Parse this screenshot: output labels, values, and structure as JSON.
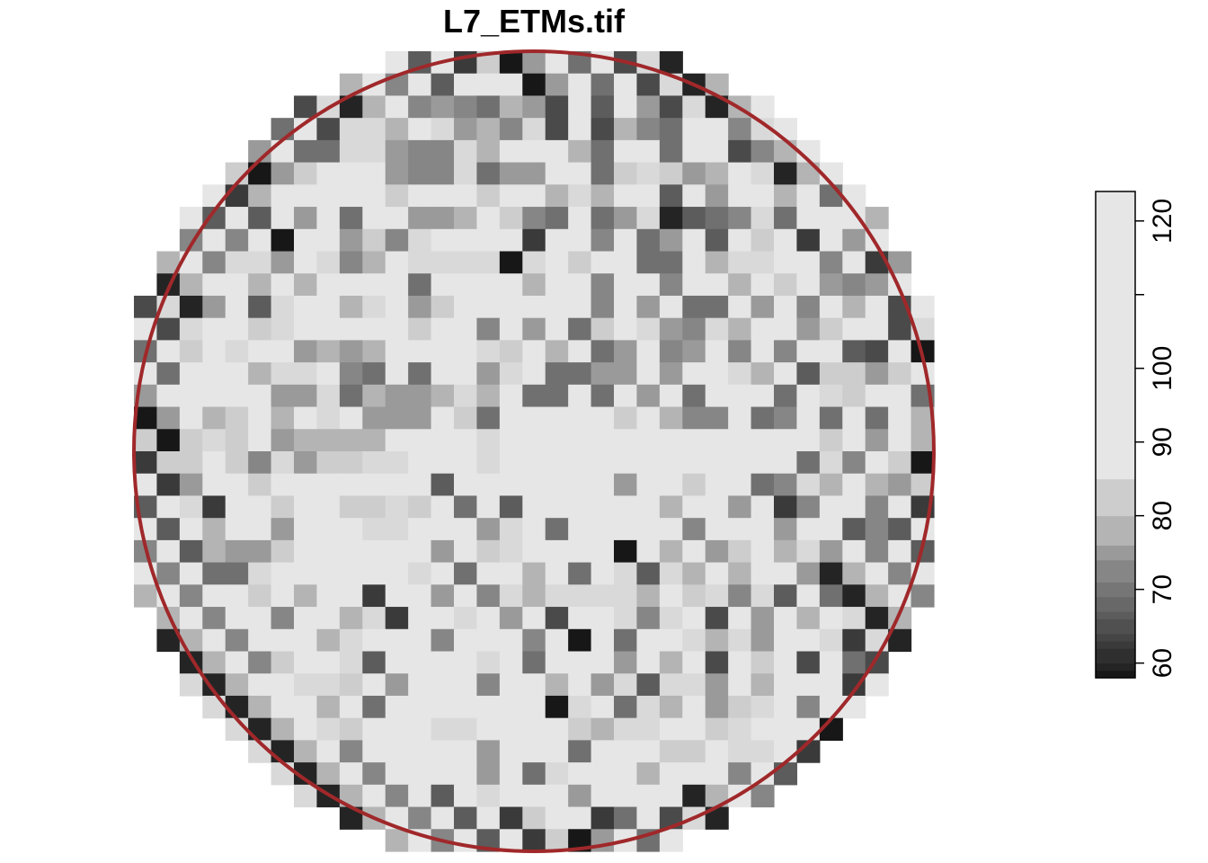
{
  "chart_data": {
    "type": "heatmap",
    "title": "L7_ETMs.tif",
    "colormap": "greyscale (dark = low, light = high)",
    "value_range": [
      58,
      124
    ],
    "legend": {
      "position": "right",
      "ticks": [
        60,
        70,
        80,
        90,
        100,
        120
      ],
      "tick_labels": [
        "60",
        "70",
        "80",
        "90",
        "100",
        "120"
      ],
      "breaks": [
        58,
        59,
        60,
        62,
        63,
        64,
        66,
        67,
        69,
        71,
        74,
        76,
        80,
        85,
        124
      ],
      "colors": [
        "#171717",
        "#242424",
        "#2F2F2F",
        "#3A3A3A",
        "#454545",
        "#505050",
        "#5C5C5C",
        "#686868",
        "#767676",
        "#868686",
        "#9A9A9A",
        "#B4B4B4",
        "#CDCDCD",
        "#E6E6E6"
      ]
    },
    "raster": {
      "columns": 35,
      "rows": 36,
      "note": "grey-level raster of pixel values masked to a circular region",
      "values": [
        "..........................................................................",
        "...............CD...............",
        "............6765873C4D7...........",
        "..........A8CA786A3D3865BB6A...........",
        "........5AA766A8DDB85BB5CC36....",
        ".......9BCC766A577BB59A978C........",
        ".....8CCCCB9BBB9BC8A8CC4B7BC8C5C1.",
        ".....4C7B5BC778D965C57A1456A5CCB85A........",
        "....6C0CC796ABBDD2EE6E57B4E9D2B7B3A.",
        "....AA7BA68BAAAA0AB9DE55E8AABB6B27BB",
        "....D8E8BBCB5BBBB8CC6CE6DD8C9C767CB.",
        "...7C4ACC8AC79DBBCCB6E7E55B7C6B8E3E.",
        "..ACC9ABBBBB9CC6D7E59CA76A8BE79EB..",
        "..9CABC7878DBBCA9C8D57E67C6E6EB43C0",
        "...CC8AAC65B5FF7AD5577E7EBA8F49979.",
        "..CBCD77A58778A8E55C5F7E5EBC5CA9B..",
        "..B89C8DAB777B95EEEEC9C866E56E5E5E8C",
        "..9A9C78888CCBCAEEEEEEEFEEEEBD9B7E8B",
        "..9B96A799AACCBAEEEEEEEEEEEEE5A6B..",
        "..7EF9BBCCCCB4EEEEEEE7EE9EE56A8E87",
        "..A2EE9CC99A9B5E4FFEEEE8EE7D26DC6.",
        "...8BB7ECCAACCC7AE5CEEEB6EEB7BC46.",
        "...8779CCCCCC7B9AEEEE0E8C79E8A7.",
        "...55ACCCCCCAC5BE8E5EA4A8E8EB7...",
        "....D9D8DC2CC7D6A8AAAA8D9A6A4D5..",
        "....DD6BB8A2CCAE7D3DCA6AC3D7D8E.",
        ".....DBC8ABDE6BEE6D0E5EEA8A7DDA2.",
        ".....69BBA4EEEFAD5FEE7E8E3D9D3D5..",
        "......EAA9E7EFF6EC8C7A4AA7E8CDD2D.",
        ".......B8F5EBEEEFE0AB5A8B79AC6CE...",
        "........A9EEBAAEBBE98AAEB9ABBB...",
        "..........BBEEB7EEE5BCD99BAA......",
        "............BBF7E5ADBB8DB...........",
        "...............AEEE7BCDB................",
        "..................EE2.................",
        ".................................."
      ]
    }
  }
}
